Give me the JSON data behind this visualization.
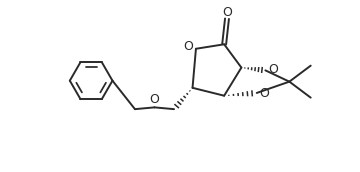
{
  "bg_color": "#ffffff",
  "line_color": "#2a2a2a",
  "line_width": 1.4,
  "fig_width": 3.6,
  "fig_height": 1.72,
  "dpi": 100,
  "xlim": [
    0,
    9.5
  ],
  "ylim": [
    0,
    4.8
  ]
}
